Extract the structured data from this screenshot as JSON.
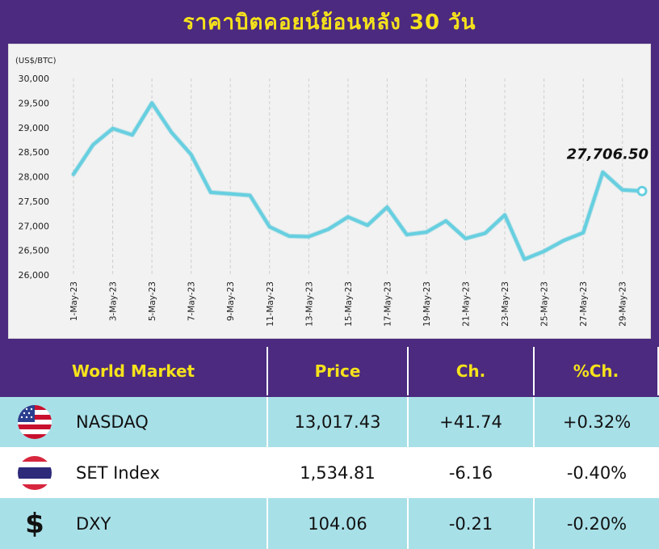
{
  "header": {
    "title": "ราคาบิตคอยน์ย้อนหลัง 30 วัน"
  },
  "chart_data": {
    "type": "line",
    "unit_label": "(US$/BTC)",
    "x": [
      "1-May-23",
      "2-May-23",
      "3-May-23",
      "4-May-23",
      "5-May-23",
      "6-May-23",
      "7-May-23",
      "8-May-23",
      "9-May-23",
      "10-May-23",
      "11-May-23",
      "12-May-23",
      "13-May-23",
      "14-May-23",
      "15-May-23",
      "16-May-23",
      "17-May-23",
      "18-May-23",
      "19-May-23",
      "20-May-23",
      "21-May-23",
      "22-May-23",
      "23-May-23",
      "24-May-23",
      "25-May-23",
      "26-May-23",
      "27-May-23",
      "28-May-23",
      "29-May-23",
      "30-May-23"
    ],
    "x_tick_labels": [
      "1-May-23",
      "3-May-23",
      "5-May-23",
      "7-May-23",
      "9-May-23",
      "11-May-23",
      "13-May-23",
      "15-May-23",
      "17-May-23",
      "19-May-23",
      "21-May-23",
      "23-May-23",
      "25-May-23",
      "27-May-23",
      "29-May-23"
    ],
    "y": [
      28050,
      28650,
      28980,
      28850,
      29500,
      28900,
      28450,
      27680,
      27650,
      27620,
      26980,
      26790,
      26780,
      26930,
      27180,
      27010,
      27380,
      26820,
      26870,
      27100,
      26740,
      26850,
      27220,
      26320,
      26480,
      26700,
      26860,
      28090,
      27730,
      27706.5
    ],
    "ylim": [
      26000,
      30000
    ],
    "y_ticks": [
      "26,000",
      "26,500",
      "27,000",
      "27,500",
      "28,000",
      "28,500",
      "29,000",
      "29,500",
      "30,000"
    ],
    "last_value_label": "27,706.50",
    "grid": "vertical",
    "line_color": "#66cfe0"
  },
  "table": {
    "headers": [
      "World Market",
      "Price",
      "Ch.",
      "%Ch."
    ],
    "rows": [
      {
        "icon": "us-flag-icon",
        "name": "NASDAQ",
        "price": "13,017.43",
        "change": "+41.74",
        "pct": "+0.32%"
      },
      {
        "icon": "thai-flag-icon",
        "name": "SET Index",
        "price": "1,534.81",
        "change": "-6.16",
        "pct": "-0.40%"
      },
      {
        "icon": "dollar-icon",
        "symbol": "$",
        "name": "DXY",
        "price": "104.06",
        "change": "-0.21",
        "pct": "-0.20%"
      }
    ]
  },
  "colors": {
    "purple": "#4b2a7f",
    "yellow": "#f5e21b",
    "cyan_row": "#a8e0e8"
  }
}
